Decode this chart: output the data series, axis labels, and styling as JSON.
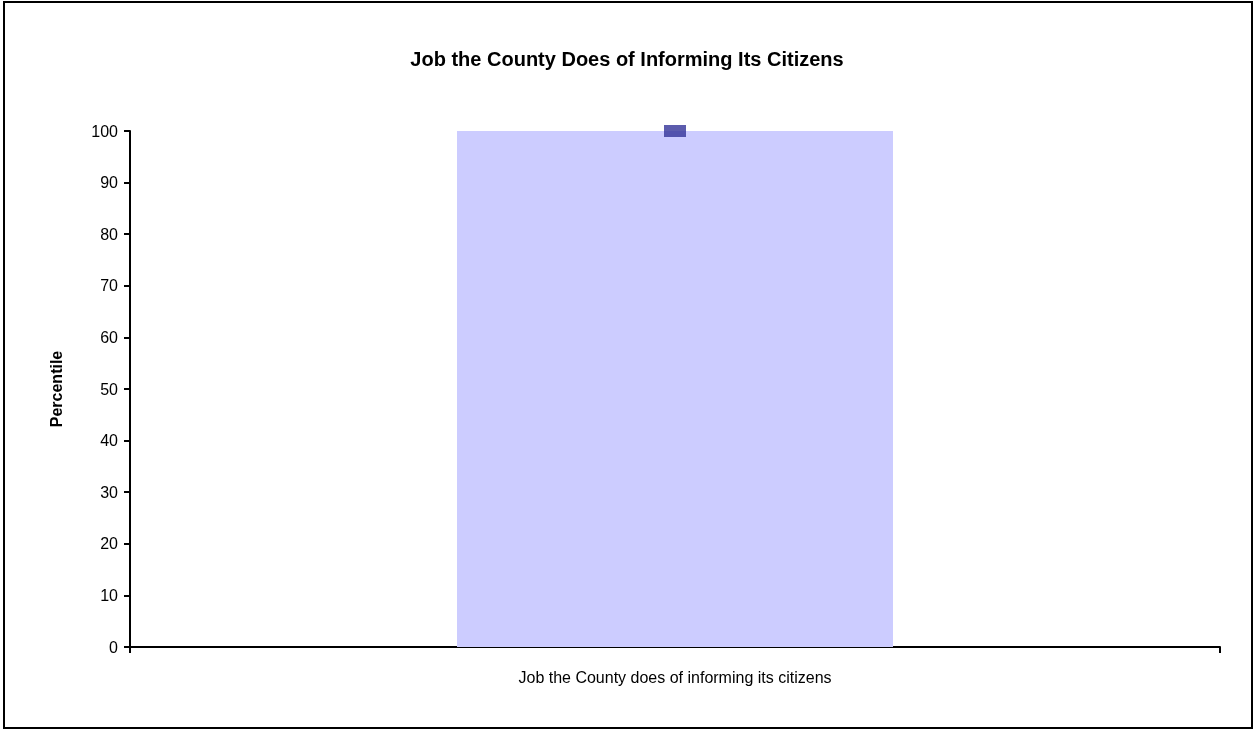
{
  "chart_data": {
    "type": "bar",
    "title": "Job the County Does of Informing Its Citizens",
    "ylabel": "Percentile",
    "categories": [
      "Job the County does of informing its citizens"
    ],
    "series": [
      {
        "type": "bar",
        "color": "#ccccff",
        "values": [
          100
        ]
      },
      {
        "type": "scatter",
        "color": "#333399",
        "x": [
          "Job the County does of informing its citizens"
        ],
        "values": [
          100
        ]
      }
    ],
    "ylim": [
      0,
      100
    ],
    "yticks": [
      0,
      10,
      20,
      30,
      40,
      50,
      60,
      70,
      80,
      90,
      100
    ],
    "grid": false,
    "marker": "square"
  }
}
